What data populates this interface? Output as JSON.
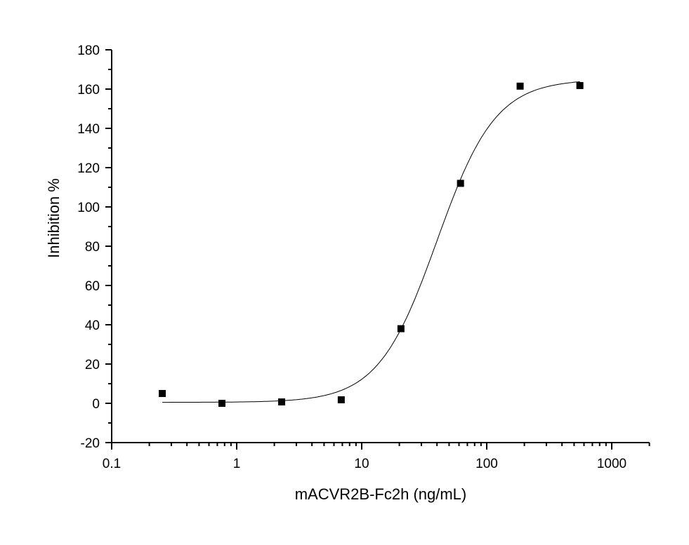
{
  "chart_data": {
    "type": "scatter",
    "title": "",
    "xlabel": "mACVR2B-Fc2h (ng/mL)",
    "ylabel": "Inhibition %",
    "xscale": "log",
    "xlim": [
      0.1,
      2000
    ],
    "ylim": [
      -20,
      180
    ],
    "xticks": [
      "0.1",
      "1",
      "10",
      "100",
      "1000"
    ],
    "yticks": [
      "-20",
      "0",
      "20",
      "40",
      "60",
      "80",
      "100",
      "120",
      "140",
      "160",
      "180"
    ],
    "grid": false,
    "legend": "none",
    "series": [
      {
        "marker": "square",
        "color": "#000000",
        "x": [
          0.254,
          0.762,
          2.29,
          6.86,
          20.6,
          61.7,
          185,
          556
        ],
        "y": [
          5.0,
          0.0,
          0.7,
          1.8,
          38.0,
          112.0,
          161.5,
          161.8
        ]
      }
    ],
    "fit_curve": {
      "type": "4PL",
      "color": "#000000"
    }
  }
}
